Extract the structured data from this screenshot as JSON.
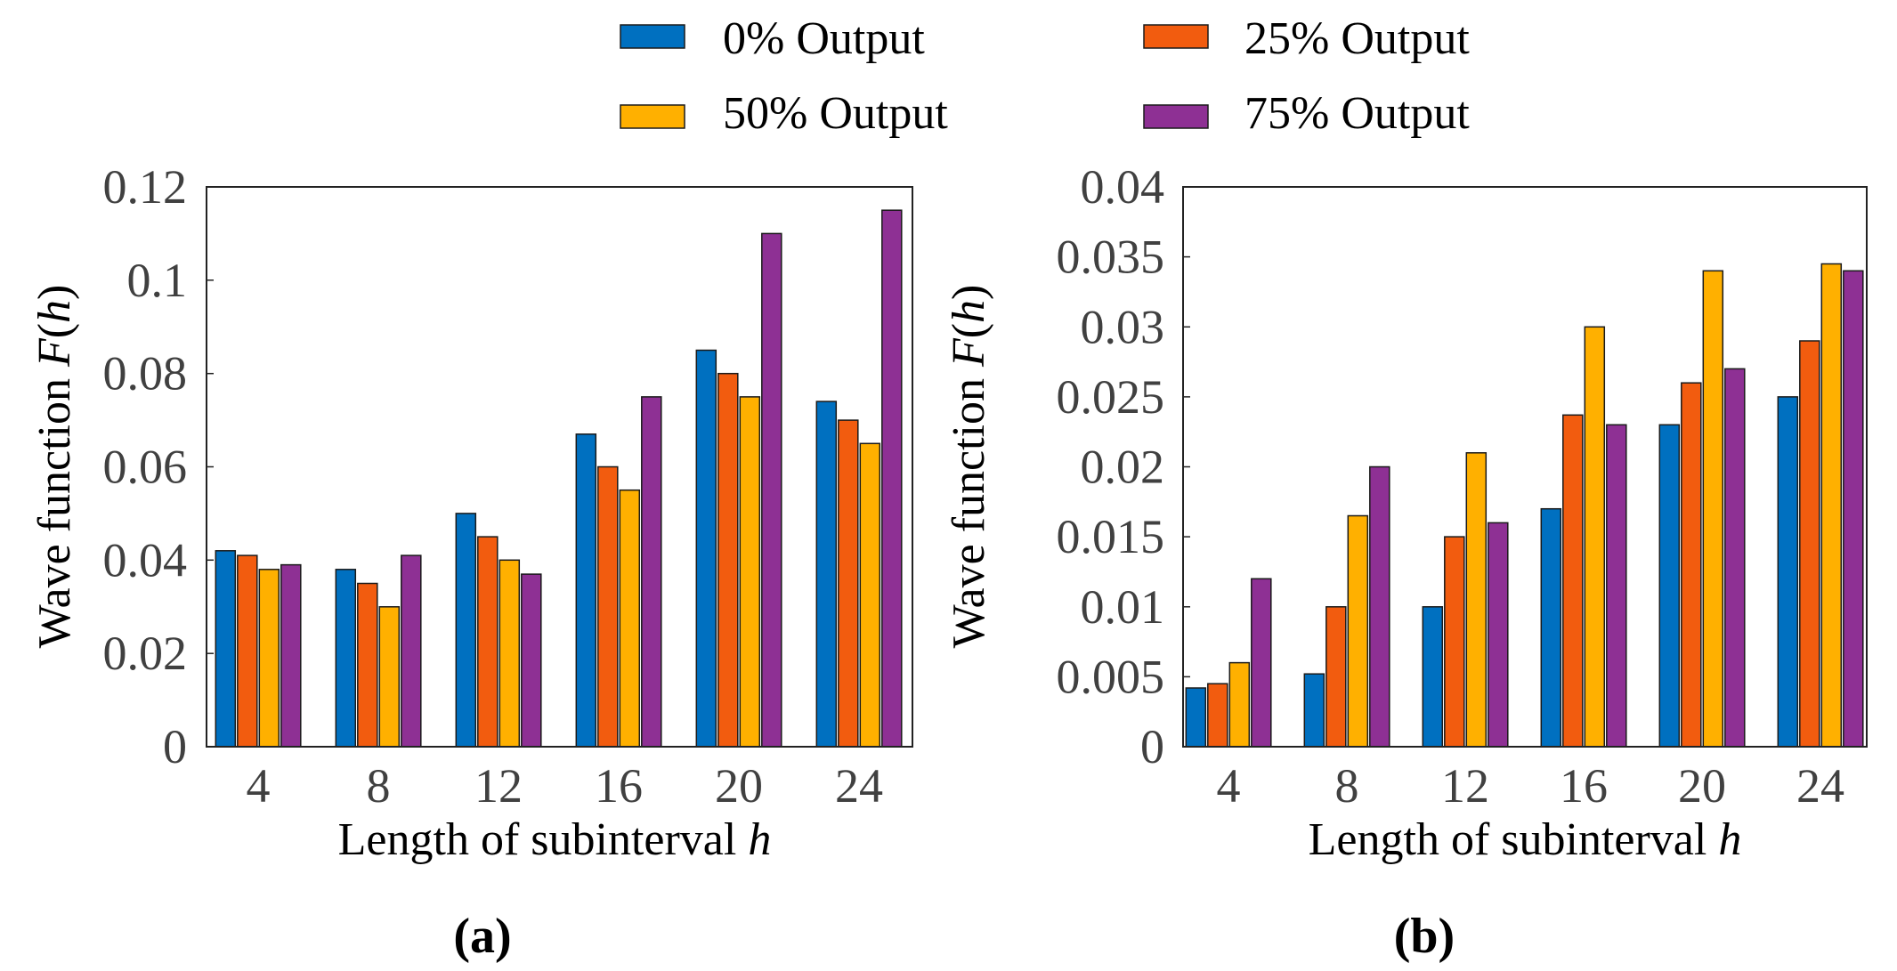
{
  "legend": [
    {
      "label": "0% Output",
      "color": "#0070C0"
    },
    {
      "label": "25% Output",
      "color": "#F25C0F"
    },
    {
      "label": "50% Output",
      "color": "#FFB000"
    },
    {
      "label": "75% Output",
      "color": "#8E3094"
    }
  ],
  "chart_data": [
    {
      "type": "bar",
      "panel_label": "(a)",
      "categories": [
        "4",
        "8",
        "12",
        "16",
        "20",
        "24"
      ],
      "xlabel_text": "Length of subinterval ",
      "xlabel_var": "h",
      "ylabel_text": "Wave function ",
      "ylabel_func": "F",
      "ylabel_arg_open": "(",
      "ylabel_arg": "h",
      "ylabel_arg_close": ")",
      "ylim": [
        0,
        0.12
      ],
      "yticks": [
        "0",
        "0.02",
        "0.04",
        "0.06",
        "0.08",
        "0.1",
        "0.12"
      ],
      "ytick_values": [
        0,
        0.02,
        0.04,
        0.06,
        0.08,
        0.1,
        0.12
      ],
      "series": [
        {
          "name": "0% Output",
          "values": [
            0.042,
            0.038,
            0.05,
            0.067,
            0.085,
            0.074
          ]
        },
        {
          "name": "25% Output",
          "values": [
            0.041,
            0.035,
            0.045,
            0.06,
            0.08,
            0.07
          ]
        },
        {
          "name": "50% Output",
          "values": [
            0.038,
            0.03,
            0.04,
            0.055,
            0.075,
            0.065
          ]
        },
        {
          "name": "75% Output",
          "values": [
            0.039,
            0.041,
            0.037,
            0.075,
            0.11,
            0.115
          ]
        }
      ],
      "grid": false
    },
    {
      "type": "bar",
      "panel_label": "(b)",
      "categories": [
        "4",
        "8",
        "12",
        "16",
        "20",
        "24"
      ],
      "xlabel_text": "Length of subinterval ",
      "xlabel_var": "h",
      "ylabel_text": "Wave function ",
      "ylabel_func": "F",
      "ylabel_arg_open": "(",
      "ylabel_arg": "h",
      "ylabel_arg_close": ")",
      "ylim": [
        0,
        0.04
      ],
      "yticks": [
        "0",
        "0.005",
        "0.01",
        "0.015",
        "0.02",
        "0.025",
        "0.03",
        "0.035",
        "0.04"
      ],
      "ytick_values": [
        0,
        0.005,
        0.01,
        0.015,
        0.02,
        0.025,
        0.03,
        0.035,
        0.04
      ],
      "series": [
        {
          "name": "0% Output",
          "values": [
            0.0042,
            0.0052,
            0.01,
            0.017,
            0.023,
            0.025
          ]
        },
        {
          "name": "25% Output",
          "values": [
            0.0045,
            0.01,
            0.015,
            0.0237,
            0.026,
            0.029
          ]
        },
        {
          "name": "50% Output",
          "values": [
            0.006,
            0.0165,
            0.021,
            0.03,
            0.034,
            0.0345
          ]
        },
        {
          "name": "75% Output",
          "values": [
            0.012,
            0.02,
            0.016,
            0.023,
            0.027,
            0.034
          ]
        }
      ],
      "grid": false
    }
  ]
}
